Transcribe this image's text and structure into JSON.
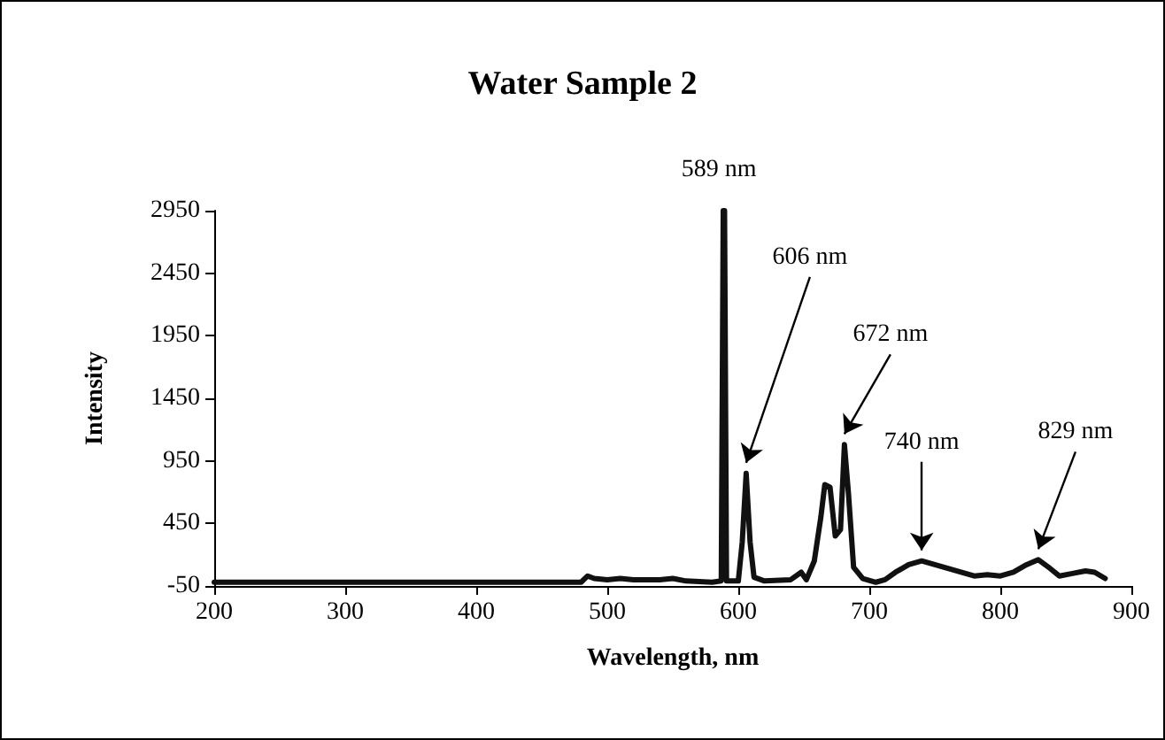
{
  "chart_data": {
    "type": "line",
    "title": "Water Sample 2",
    "xlabel": "Wavelength, nm",
    "ylabel": "Intensity",
    "xlim": [
      200,
      900
    ],
    "xticks": [
      200,
      300,
      400,
      500,
      600,
      700,
      800,
      900
    ],
    "ylim": [
      -50,
      2950
    ],
    "yticks": [
      -50,
      450,
      950,
      1450,
      1950,
      2450,
      2950
    ],
    "grid": false,
    "marker": "none",
    "line_style": "solid",
    "series": [
      {
        "color": "#111111",
        "x": [
          200,
          250,
          300,
          350,
          400,
          450,
          480,
          485,
          490,
          500,
          510,
          520,
          540,
          550,
          560,
          580,
          587,
          588.5,
          589.5,
          591,
          600,
          603,
          606,
          609,
          612,
          620,
          640,
          648,
          652,
          658,
          663,
          666,
          670,
          674,
          678,
          681,
          684,
          688,
          695,
          705,
          712,
          720,
          730,
          740,
          750,
          760,
          770,
          780,
          790,
          800,
          810,
          820,
          829,
          838,
          845,
          855,
          865,
          872,
          880
        ],
        "values": [
          -20,
          -20,
          -20,
          -20,
          -20,
          -20,
          -20,
          30,
          10,
          0,
          10,
          0,
          0,
          10,
          -10,
          -20,
          -10,
          2950,
          2950,
          -10,
          -10,
          300,
          850,
          300,
          20,
          -10,
          0,
          60,
          0,
          150,
          500,
          760,
          740,
          350,
          400,
          1080,
          700,
          100,
          10,
          -20,
          0,
          60,
          120,
          150,
          120,
          90,
          60,
          30,
          40,
          30,
          60,
          120,
          160,
          90,
          30,
          50,
          70,
          60,
          10
        ]
      }
    ],
    "annotations": [
      {
        "text": "589 nm",
        "x": 589,
        "y": 2950
      },
      {
        "text": "606 nm",
        "x": 606,
        "y": 850
      },
      {
        "text": "672 nm",
        "x": 681,
        "y": 1080
      },
      {
        "text": "740 nm",
        "x": 740,
        "y": 150
      },
      {
        "text": "829 nm",
        "x": 829,
        "y": 160
      }
    ]
  }
}
